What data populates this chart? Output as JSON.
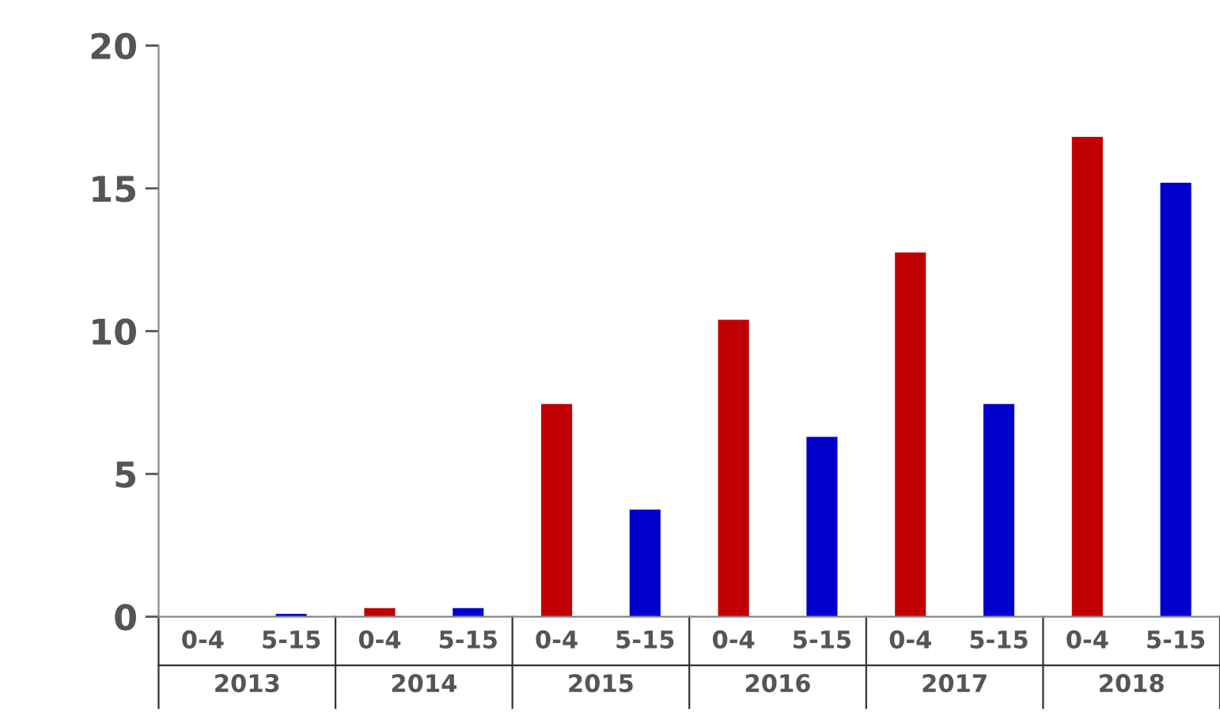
{
  "chart_data": {
    "type": "bar",
    "categories": [
      "0-4",
      "5-15",
      "0-4",
      "5-15",
      "0-4",
      "5-15",
      "0-4",
      "5-15",
      "0-4",
      "5-15",
      "0-4",
      "5-15"
    ],
    "values": [
      0,
      0.1,
      0.3,
      0.3,
      7.45,
      3.75,
      10.4,
      6.3,
      12.75,
      7.45,
      16.8,
      15.2
    ],
    "colors": [
      "#c00000",
      "#0000cc",
      "#c00000",
      "#0000cc",
      "#c00000",
      "#0000cc",
      "#c00000",
      "#0000cc",
      "#c00000",
      "#0000cc",
      "#c00000",
      "#0000cc"
    ],
    "annotations": [
      "2013",
      "2014",
      "2015",
      "2016",
      "2017",
      "2018"
    ],
    "ylim": [
      0,
      20
    ],
    "yticks": [
      0,
      5,
      10,
      15,
      20
    ]
  }
}
